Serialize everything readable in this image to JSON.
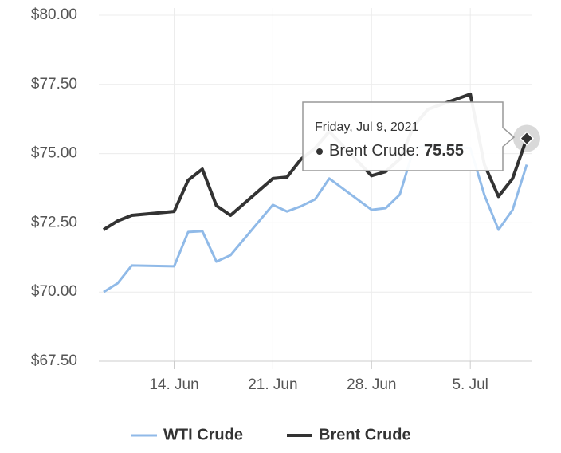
{
  "chart_data": {
    "type": "line",
    "x": [
      "2021-06-09",
      "2021-06-10",
      "2021-06-11",
      "2021-06-14",
      "2021-06-15",
      "2021-06-16",
      "2021-06-17",
      "2021-06-18",
      "2021-06-21",
      "2021-06-22",
      "2021-06-23",
      "2021-06-24",
      "2021-06-25",
      "2021-06-28",
      "2021-06-29",
      "2021-06-30",
      "2021-07-01",
      "2021-07-02",
      "2021-07-05",
      "2021-07-06",
      "2021-07-07",
      "2021-07-08",
      "2021-07-09"
    ],
    "series": [
      {
        "name": "WTI Crude",
        "color": "#90bae8",
        "values": [
          70.0,
          70.32,
          70.96,
          70.93,
          72.17,
          72.2,
          71.1,
          71.33,
          73.15,
          72.91,
          73.1,
          73.35,
          74.1,
          72.97,
          73.03,
          73.52,
          75.2,
          75.3,
          75.2,
          73.5,
          72.25,
          72.97,
          74.6
        ]
      },
      {
        "name": "Brent Crude",
        "color": "#333333",
        "values": [
          72.25,
          72.57,
          72.77,
          72.91,
          74.04,
          74.44,
          73.12,
          72.77,
          74.1,
          74.15,
          74.8,
          75.2,
          75.8,
          74.2,
          74.35,
          74.8,
          76.0,
          76.6,
          77.15,
          74.6,
          73.45,
          74.1,
          75.55
        ]
      }
    ],
    "xlim": [
      "2021-06-09",
      "2021-07-09"
    ],
    "xticks": [
      {
        "value": "2021-06-14",
        "label": "14. Jun"
      },
      {
        "value": "2021-06-21",
        "label": "21. Jun"
      },
      {
        "value": "2021-06-28",
        "label": "28. Jun"
      },
      {
        "value": "2021-07-05",
        "label": "5. Jul"
      }
    ],
    "ylim": [
      67.5,
      80
    ],
    "yticks": [
      {
        "value": 67.5,
        "label": "$67.50"
      },
      {
        "value": 70,
        "label": "$70.00"
      },
      {
        "value": 72.5,
        "label": "$72.50"
      },
      {
        "value": 75,
        "label": "$75.00"
      },
      {
        "value": 77.5,
        "label": "$77.50"
      },
      {
        "value": 80,
        "label": "$80.00"
      }
    ],
    "grid": true,
    "legend": "bottom",
    "tooltip": {
      "header": "Friday, Jul 9, 2021",
      "label": "Brent Crude:",
      "series": 1,
      "point": 22
    }
  }
}
